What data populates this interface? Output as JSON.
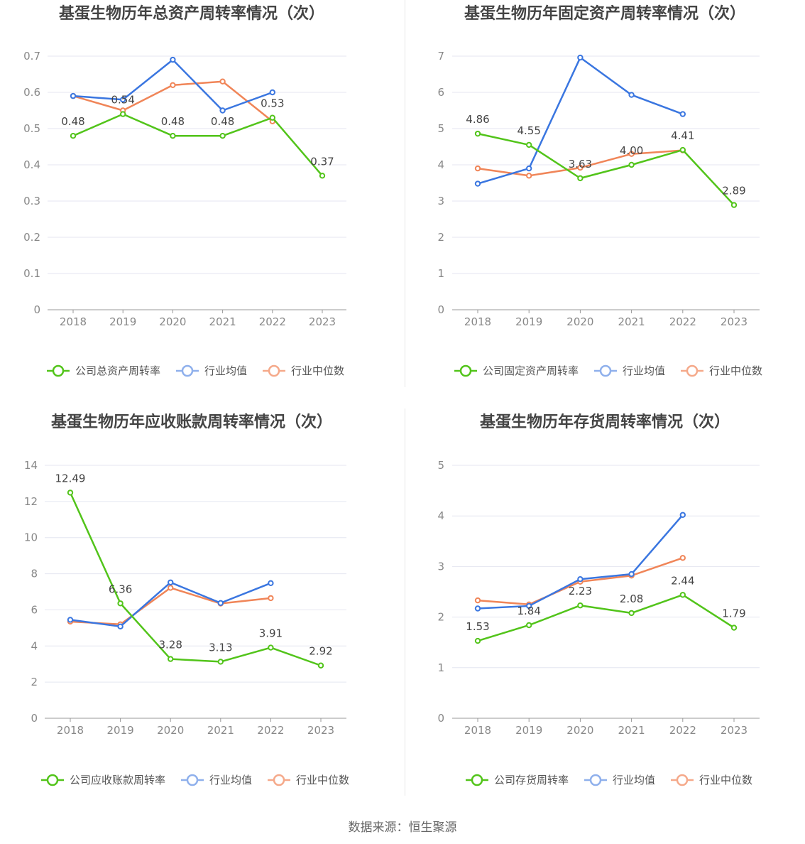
{
  "footer": {
    "source": "数据来源：恒生聚源"
  },
  "colors": {
    "company": "#52c41a",
    "avg": "#3a76e0",
    "median": "#f08558",
    "legend_avg": "#8fb0ec",
    "legend_median": "#f5a98a",
    "grid": "#e4e6f0",
    "axis": "#999999",
    "tick": "#888888",
    "title": "#444444",
    "label": "#444444"
  },
  "chart_data": [
    {
      "type": "line",
      "title": "基蛋生物历年总资产周转率情况（次）",
      "x": [
        "2018",
        "2019",
        "2020",
        "2021",
        "2022",
        "2023"
      ],
      "ylim": [
        0,
        0.7
      ],
      "yticks": [
        "0",
        "0.1",
        "0.2",
        "0.3",
        "0.4",
        "0.5",
        "0.6",
        "0.7"
      ],
      "series": [
        {
          "name": "公司总资产周转率",
          "role": "company",
          "values": [
            0.48,
            0.54,
            0.48,
            0.48,
            0.53,
            0.37
          ],
          "labels": [
            "0.48",
            "0.54",
            "0.48",
            "0.48",
            "0.53",
            "0.37"
          ]
        },
        {
          "name": "行业均值",
          "role": "avg",
          "values": [
            0.59,
            0.58,
            0.69,
            0.55,
            0.6,
            null
          ]
        },
        {
          "name": "行业中位数",
          "role": "median",
          "values": [
            0.59,
            0.55,
            0.62,
            0.63,
            0.52,
            null
          ]
        }
      ]
    },
    {
      "type": "line",
      "title": "基蛋生物历年固定资产周转率情况（次）",
      "x": [
        "2018",
        "2019",
        "2020",
        "2021",
        "2022",
        "2023"
      ],
      "ylim": [
        0,
        7
      ],
      "yticks": [
        "0",
        "1",
        "2",
        "3",
        "4",
        "5",
        "6",
        "7"
      ],
      "series": [
        {
          "name": "公司固定资产周转率",
          "role": "company",
          "values": [
            4.86,
            4.55,
            3.63,
            4.0,
            4.41,
            2.89
          ],
          "labels": [
            "4.86",
            "4.55",
            "3.63",
            "4.00",
            "4.41",
            "2.89"
          ]
        },
        {
          "name": "行业均值",
          "role": "avg",
          "values": [
            3.48,
            3.9,
            6.96,
            5.93,
            5.4,
            null
          ]
        },
        {
          "name": "行业中位数",
          "role": "median",
          "values": [
            3.9,
            3.7,
            3.92,
            4.3,
            4.4,
            null
          ]
        }
      ]
    },
    {
      "type": "line",
      "title": "基蛋生物历年应收账款周转率情况（次）",
      "x": [
        "2018",
        "2019",
        "2020",
        "2021",
        "2022",
        "2023"
      ],
      "ylim": [
        0,
        14
      ],
      "yticks": [
        "0",
        "2",
        "4",
        "6",
        "8",
        "10",
        "12",
        "14"
      ],
      "series": [
        {
          "name": "公司应收账款周转率",
          "role": "company",
          "values": [
            12.49,
            6.36,
            3.28,
            3.13,
            3.91,
            2.92
          ],
          "labels": [
            "12.49",
            "6.36",
            "3.28",
            "3.13",
            "3.91",
            "2.92"
          ]
        },
        {
          "name": "行业均值",
          "role": "avg",
          "values": [
            5.45,
            5.08,
            7.52,
            6.38,
            7.48,
            null
          ]
        },
        {
          "name": "行业中位数",
          "role": "median",
          "values": [
            5.35,
            5.2,
            7.22,
            6.35,
            6.65,
            null
          ]
        }
      ]
    },
    {
      "type": "line",
      "title": "基蛋生物历年存货周转率情况（次）",
      "x": [
        "2018",
        "2019",
        "2020",
        "2021",
        "2022",
        "2023"
      ],
      "ylim": [
        0,
        5
      ],
      "yticks": [
        "0",
        "1",
        "2",
        "3",
        "4",
        "5"
      ],
      "series": [
        {
          "name": "公司存货周转率",
          "role": "company",
          "values": [
            1.53,
            1.84,
            2.23,
            2.08,
            2.44,
            1.79
          ],
          "labels": [
            "1.53",
            "1.84",
            "2.23",
            "2.08",
            "2.44",
            "1.79"
          ]
        },
        {
          "name": "行业均值",
          "role": "avg",
          "values": [
            2.17,
            2.22,
            2.75,
            2.85,
            4.02,
            null
          ]
        },
        {
          "name": "行业中位数",
          "role": "median",
          "values": [
            2.33,
            2.25,
            2.7,
            2.82,
            3.17,
            null
          ]
        }
      ]
    }
  ]
}
